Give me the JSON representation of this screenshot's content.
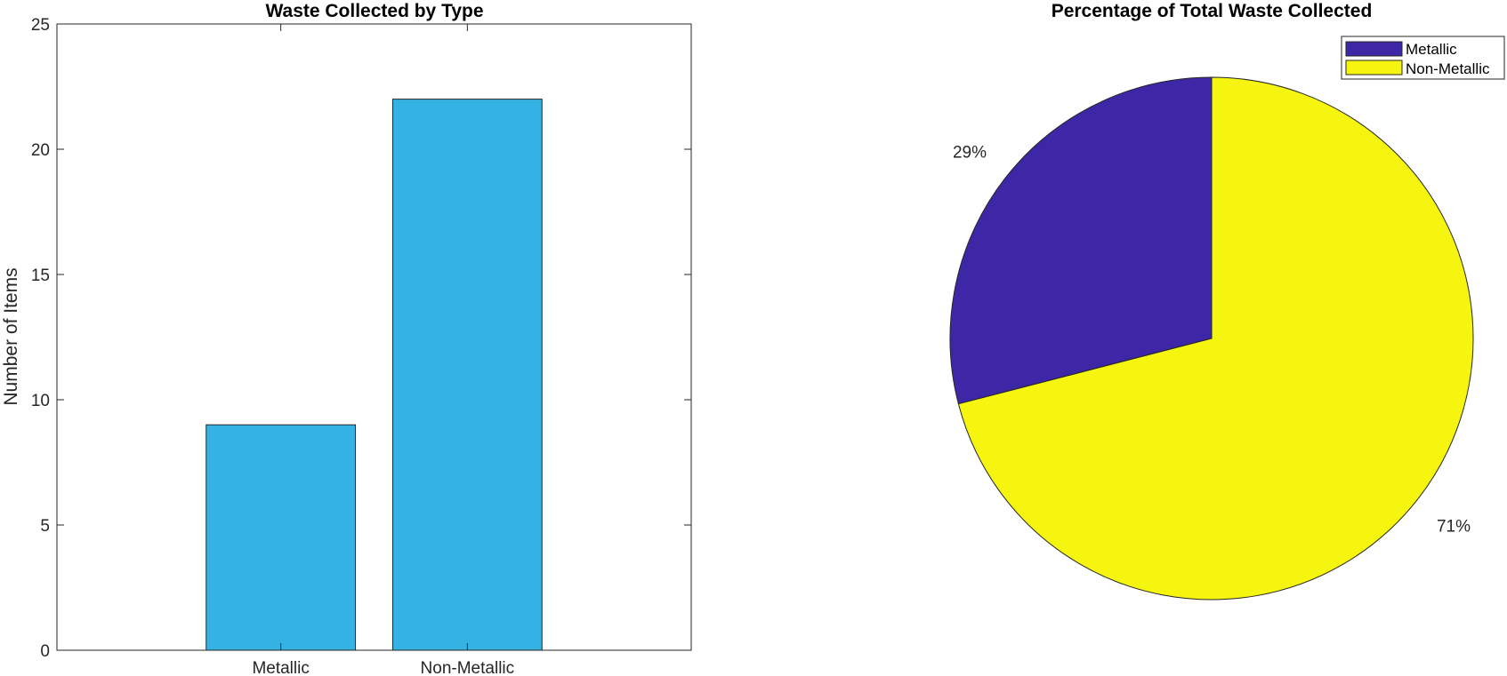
{
  "colors": {
    "bar_fill": "#35b2e4",
    "slice_metallic": "#3e27a6",
    "slice_non_metallic": "#f5f50f",
    "edge": "#262626"
  },
  "chart_data": [
    {
      "type": "bar",
      "title": "Waste Collected by Type",
      "xlabel": "",
      "ylabel": "Number of Items",
      "categories": [
        "Metallic",
        "Non-Metallic"
      ],
      "values": [
        9,
        22
      ],
      "ylim": [
        0,
        25
      ],
      "yticks": [
        0,
        5,
        10,
        15,
        20,
        25
      ],
      "grid": false
    },
    {
      "type": "pie",
      "title": "Percentage of Total Waste Collected",
      "labels": [
        "Metallic",
        "Non-Metallic"
      ],
      "values": [
        9,
        22
      ],
      "percent_labels": [
        "29%",
        "71%"
      ],
      "legend": {
        "entries": [
          "Metallic",
          "Non-Metallic"
        ],
        "location": "top-right"
      }
    }
  ]
}
